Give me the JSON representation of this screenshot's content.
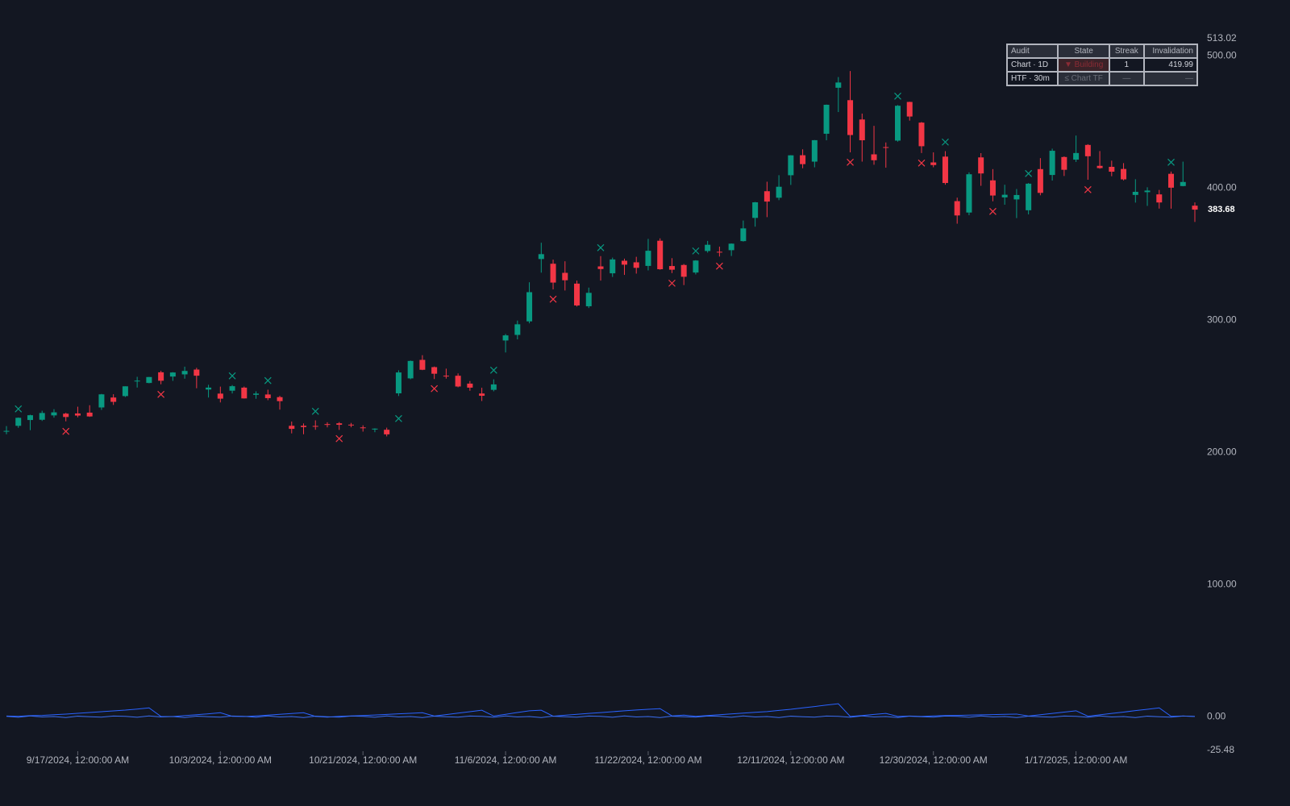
{
  "chart_data": {
    "type": "candlestick",
    "x": [
      "2024-09-09",
      "2024-09-10",
      "2024-09-11",
      "2024-09-12",
      "2024-09-13",
      "2024-09-16",
      "2024-09-17",
      "2024-09-18",
      "2024-09-19",
      "2024-09-20",
      "2024-09-23",
      "2024-09-24",
      "2024-09-25",
      "2024-09-26",
      "2024-09-27",
      "2024-09-30",
      "2024-10-01",
      "2024-10-02",
      "2024-10-03",
      "2024-10-04",
      "2024-10-07",
      "2024-10-08",
      "2024-10-09",
      "2024-10-10",
      "2024-10-11",
      "2024-10-14",
      "2024-10-15",
      "2024-10-16",
      "2024-10-17",
      "2024-10-18",
      "2024-10-21",
      "2024-10-22",
      "2024-10-23",
      "2024-10-24",
      "2024-10-25",
      "2024-10-28",
      "2024-10-29",
      "2024-10-30",
      "2024-10-31",
      "2024-11-01",
      "2024-11-04",
      "2024-11-05",
      "2024-11-06",
      "2024-11-07",
      "2024-11-08",
      "2024-11-11",
      "2024-11-12",
      "2024-11-13",
      "2024-11-14",
      "2024-11-15",
      "2024-11-18",
      "2024-11-19",
      "2024-11-20",
      "2024-11-21",
      "2024-11-22",
      "2024-11-25",
      "2024-11-26",
      "2024-11-27",
      "2024-11-29",
      "2024-12-02",
      "2024-12-03",
      "2024-12-04",
      "2024-12-05",
      "2024-12-06",
      "2024-12-09",
      "2024-12-10",
      "2024-12-11",
      "2024-12-12",
      "2024-12-13",
      "2024-12-16",
      "2024-12-17",
      "2024-12-18",
      "2024-12-19",
      "2024-12-20",
      "2024-12-23",
      "2024-12-24",
      "2024-12-26",
      "2024-12-27",
      "2024-12-30",
      "2024-12-31",
      "2025-01-02",
      "2025-01-03",
      "2025-01-06",
      "2025-01-07",
      "2025-01-08",
      "2025-01-10",
      "2025-01-13",
      "2025-01-14",
      "2025-01-15",
      "2025-01-16",
      "2025-01-17",
      "2025-01-21",
      "2025-01-22",
      "2025-01-23",
      "2025-01-24",
      "2025-01-27",
      "2025-01-28",
      "2025-01-29",
      "2025-01-30",
      "2025-01-31",
      "2025-02-03"
    ],
    "open": [
      216.2,
      220.1,
      224.5,
      224.7,
      228.0,
      229.3,
      229.45,
      230.09,
      234.0,
      241.52,
      242.61,
      254.08,
      252.54,
      260.6,
      257.38,
      259.04,
      262.67,
      247.55,
      244.48,
      246.69,
      249.0,
      243.56,
      243.82,
      241.81,
      220.13,
      220.13,
      220.01,
      221.4,
      222.0,
      221.0,
      218.9,
      217.31,
      217.13,
      244.68,
      256.01,
      270.0,
      264.51,
      258.04,
      257.99,
      252.04,
      244.56,
      247.34,
      284.67,
      288.89,
      299.14,
      346.3,
      342.74,
      335.85,
      327.69,
      310.57,
      340.73,
      335.5,
      345.0,
      343.81,
      341.09,
      360.14,
      341.0,
      341.8,
      336.08,
      352.38,
      351.8,
      353.0,
      359.87,
      377.42,
      397.61,
      392.68,
      409.7,
      424.84,
      420.0,
      441.09,
      475.9,
      466.5,
      451.88,
      425.51,
      431.0,
      435.9,
      465.16,
      449.52,
      419.4,
      423.79,
      390.1,
      381.48,
      423.2,
      405.83,
      392.95,
      391.4,
      383.21,
      414.34,
      409.9,
      423.49,
      421.5,
      432.64,
      416.81,
      416.06,
      414.45,
      394.8,
      396.91,
      395.21,
      410.78,
      401.53,
      386.68
    ],
    "high": [
      219.9,
      226.4,
      228.5,
      231.5,
      232.7,
      229.96,
      234.57,
      235.68,
      244.24,
      243.99,
      250.0,
      257.19,
      257.05,
      261.75,
      260.7,
      264.86,
      263.98,
      251.16,
      249.79,
      250.96,
      249.83,
      246.21,
      247.43,
      242.79,
      223.34,
      221.91,
      224.26,
      222.82,
      222.93,
      222.3,
      220.48,
      218.22,
      218.72,
      262.12,
      269.49,
      273.54,
      264.98,
      263.35,
      259.75,
      254.0,
      248.9,
      255.28,
      289.59,
      299.75,
      328.71,
      358.64,
      345.84,
      344.6,
      329.98,
      324.68,
      348.55,
      347.38,
      346.6,
      347.99,
      361.53,
      361.93,
      346.96,
      342.55,
      345.45,
      360.0,
      355.69,
      358.1,
      375.43,
      389.49,
      404.8,
      409.73,
      424.88,
      429.3,
      436.3,
      463.19,
      483.99,
      488.54,
      456.36,
      447.08,
      434.51,
      462.78,
      465.33,
      450.0,
      427.0,
      427.93,
      392.73,
      411.88,
      426.43,
      414.33,
      402.5,
      399.28,
      403.79,
      422.64,
      429.8,
      424.0,
      439.74,
      433.2,
      428.0,
      420.73,
      418.88,
      406.69,
      400.59,
      398.59,
      412.5,
      419.99,
      389.17
    ],
    "low": [
      213.7,
      218.6,
      216.8,
      223.8,
      226.3,
      223.5,
      226.55,
      226.88,
      232.13,
      235.92,
      241.92,
      249.05,
      252.28,
      251.53,
      254.12,
      255.77,
      248.53,
      241.5,
      237.81,
      244.58,
      240.7,
      240.56,
      239.51,
      232.34,
      214.38,
      213.74,
      217.12,
      218.93,
      217.0,
      219.0,
      215.73,
      215.26,
      212.11,
      242.65,
      255.32,
      262.24,
      255.51,
      255.82,
      249.25,
      246.63,
      238.88,
      246.21,
      275.62,
      285.52,
      297.66,
      336.0,
      323.31,
      322.5,
      310.37,
      309.22,
      330.01,
      332.75,
      334.3,
      335.28,
      337.7,
      338.2,
      335.66,
      326.59,
      334.65,
      351.15,
      348.2,
      348.6,
      359.5,
      370.8,
      378.01,
      390.85,
      402.38,
      415.0,
      415.71,
      436.15,
      457.51,
      427.01,
      420.02,
      417.64,
      415.41,
      435.14,
      451.02,
      426.5,
      415.75,
      402.54,
      373.04,
      379.45,
      401.7,
      390.0,
      387.4,
      377.29,
      380.07,
      394.54,
      405.66,
      409.13,
      419.75,
      406.31,
      414.59,
      408.95,
      405.78,
      389.0,
      386.5,
      384.48,
      384.41,
      401.34,
      374.36
    ],
    "close": [
      216.27,
      226.17,
      228.13,
      229.81,
      230.29,
      226.78,
      227.87,
      227.2,
      243.92,
      238.25,
      250.0,
      254.27,
      257.02,
      254.22,
      260.46,
      261.63,
      258.02,
      249.02,
      240.66,
      250.08,
      240.83,
      244.5,
      241.05,
      238.77,
      217.8,
      219.16,
      219.57,
      221.33,
      220.89,
      220.7,
      218.85,
      217.97,
      213.65,
      260.48,
      269.19,
      262.51,
      259.52,
      257.55,
      249.85,
      248.98,
      242.84,
      251.44,
      288.53,
      296.91,
      321.22,
      350.0,
      328.49,
      330.24,
      311.18,
      320.72,
      338.74,
      346.0,
      342.03,
      339.64,
      352.56,
      338.59,
      338.23,
      332.89,
      345.16,
      357.09,
      351.42,
      357.93,
      369.49,
      389.22,
      389.79,
      400.99,
      424.77,
      418.1,
      436.23,
      463.02,
      479.86,
      440.13,
      436.17,
      421.06,
      430.6,
      462.28,
      454.13,
      431.66,
      417.41,
      403.84,
      379.28,
      410.44,
      411.05,
      394.36,
      394.94,
      394.74,
      403.31,
      396.36,
      428.22,
      413.82,
      426.5,
      424.07,
      415.11,
      412.38,
      406.58,
      397.15,
      398.09,
      389.1,
      400.28,
      404.6,
      383.68
    ],
    "up_color": "#089981",
    "down_color": "#f23645",
    "ylim": [
      -25.48,
      513.02
    ],
    "yticks": [
      513.02,
      {
        "value": 500,
        "label": "500.00"
      },
      {
        "value": 400,
        "label": "400.00"
      },
      {
        "value": 300,
        "label": "300.00"
      },
      {
        "value": 200,
        "label": "200.00"
      },
      {
        "value": 100,
        "label": "100.00"
      },
      {
        "value": 0,
        "label": "0.00"
      },
      -25.48
    ],
    "xticks": [
      {
        "value": "2024-09-17",
        "label": "9/17/2024, 12:00:00 AM"
      },
      {
        "value": "2024-10-03",
        "label": "10/3/2024, 12:00:00 AM"
      },
      {
        "value": "2024-10-21",
        "label": "10/21/2024, 12:00:00 AM"
      },
      {
        "value": "2024-11-06",
        "label": "11/6/2024, 12:00:00 AM"
      },
      {
        "value": "2024-11-22",
        "label": "11/22/2024, 12:00:00 AM"
      },
      {
        "value": "2024-12-11",
        "label": "12/11/2024, 12:00:00 AM"
      },
      {
        "value": "2024-12-30",
        "label": "12/30/2024, 12:00:00 AM"
      },
      {
        "value": "2025-01-17",
        "label": "1/17/2025, 12:00:00 AM"
      }
    ],
    "bull_markers": [
      {
        "x": "2024-09-10",
        "y": 232.9
      },
      {
        "x": "2024-10-04",
        "y": 257.9
      },
      {
        "x": "2024-10-09",
        "y": 254.3
      },
      {
        "x": "2024-10-15",
        "y": 231.1
      },
      {
        "x": "2024-10-24",
        "y": 225.6
      },
      {
        "x": "2024-11-05",
        "y": 262.2
      },
      {
        "x": "2024-11-18",
        "y": 354.9
      },
      {
        "x": "2024-11-29",
        "y": 352.4
      },
      {
        "x": "2024-12-24",
        "y": 469.5
      },
      {
        "x": "2024-12-31",
        "y": 434.8
      },
      {
        "x": "2025-01-13",
        "y": 411.0
      },
      {
        "x": "2025-01-30",
        "y": 419.5
      }
    ],
    "bear_markers": [
      {
        "x": "2024-09-16",
        "y": 215.9
      },
      {
        "x": "2024-09-26",
        "y": 243.9
      },
      {
        "x": "2024-10-17",
        "y": 210.4
      },
      {
        "x": "2024-10-29",
        "y": 248.2
      },
      {
        "x": "2024-11-12",
        "y": 315.9
      },
      {
        "x": "2024-11-26",
        "y": 328.0
      },
      {
        "x": "2024-12-03",
        "y": 340.9
      },
      {
        "x": "2024-12-18",
        "y": 419.5
      },
      {
        "x": "2024-12-27",
        "y": 418.9
      },
      {
        "x": "2025-01-07",
        "y": 382.3
      },
      {
        "x": "2025-01-21",
        "y": 398.8
      }
    ],
    "oscillator": [
      {
        "color": "#2962ff",
        "values": [
          0.5,
          0.3,
          0.8,
          1.0,
          1.5,
          2.0,
          2.6,
          3.2,
          3.8,
          4.4,
          5.0,
          5.8,
          6.7,
          0.2,
          0.1,
          0.8,
          1.5,
          2.2,
          3.0,
          0.3,
          0.1,
          0.6,
          1.2,
          1.8,
          2.4,
          3.0,
          0.2,
          -0.3,
          0.3,
          0.6,
          0.9,
          1.3,
          1.7,
          2.2,
          2.6,
          3.0,
          0.5,
          1.6,
          2.7,
          3.8,
          4.9,
          0.5,
          1.8,
          3.2,
          4.5,
          4.9,
          0.4,
          1.1,
          1.8,
          2.5,
          3.1,
          3.8,
          4.5,
          5.1,
          5.6,
          6.1,
          0.6,
          1.2,
          0.3,
          0.9,
          1.5,
          2.1,
          2.7,
          3.3,
          3.9,
          4.8,
          5.6,
          6.7,
          7.7,
          8.8,
          9.8,
          0.2,
          0.9,
          1.7,
          2.5,
          0.2,
          0.5,
          0.2,
          0.6,
          0.9,
          1.0,
          1.2,
          1.4,
          1.6,
          1.8,
          2.0,
          0.5,
          1.5,
          2.5,
          3.5,
          4.5,
          0.4,
          1.4,
          2.5,
          3.5,
          4.6,
          5.6,
          6.7,
          0.3,
          0.5,
          0.2
        ]
      },
      {
        "color": "#3a6df0",
        "values": [
          0.3,
          -0.4,
          0.6,
          -0.2,
          0.1,
          -0.6,
          0.4,
          0.0,
          -0.3,
          0.5,
          0.3,
          -0.4,
          0.6,
          -0.2,
          0.1,
          -0.6,
          0.4,
          0.0,
          -0.3,
          0.5,
          0.3,
          -0.4,
          0.6,
          -0.2,
          0.1,
          -0.6,
          0.4,
          0.0,
          -0.3,
          0.5,
          0.3,
          -0.4,
          0.6,
          -0.2,
          0.1,
          -0.6,
          0.4,
          0.0,
          -0.3,
          0.5,
          0.3,
          -0.4,
          0.6,
          -0.2,
          0.1,
          -0.6,
          0.4,
          0.0,
          -0.3,
          0.5,
          0.3,
          -0.4,
          0.6,
          -0.2,
          0.1,
          -0.6,
          0.4,
          0.0,
          -0.3,
          0.5,
          0.3,
          -0.4,
          0.6,
          -0.2,
          0.1,
          -0.6,
          0.4,
          0.0,
          -0.3,
          0.5,
          0.3,
          -0.4,
          0.6,
          -0.2,
          0.1,
          -0.6,
          0.4,
          0.0,
          -0.3,
          0.5,
          0.3,
          -0.4,
          0.6,
          -0.2,
          0.1,
          -0.6,
          0.4,
          0.0,
          -0.3,
          0.5,
          0.3,
          -0.4,
          0.6,
          -0.2,
          0.1,
          -0.6,
          0.4,
          0.0,
          -0.3,
          0.5,
          0.2
        ]
      }
    ]
  },
  "table": {
    "header": [
      "Audit",
      "State",
      "Streak",
      "Invalidation"
    ],
    "rows": [
      [
        "Chart · 1D",
        "▼ Building",
        1,
        419.99
      ],
      [
        "HTF · 30m",
        "≤ Chart TF",
        "—",
        "—"
      ]
    ]
  }
}
